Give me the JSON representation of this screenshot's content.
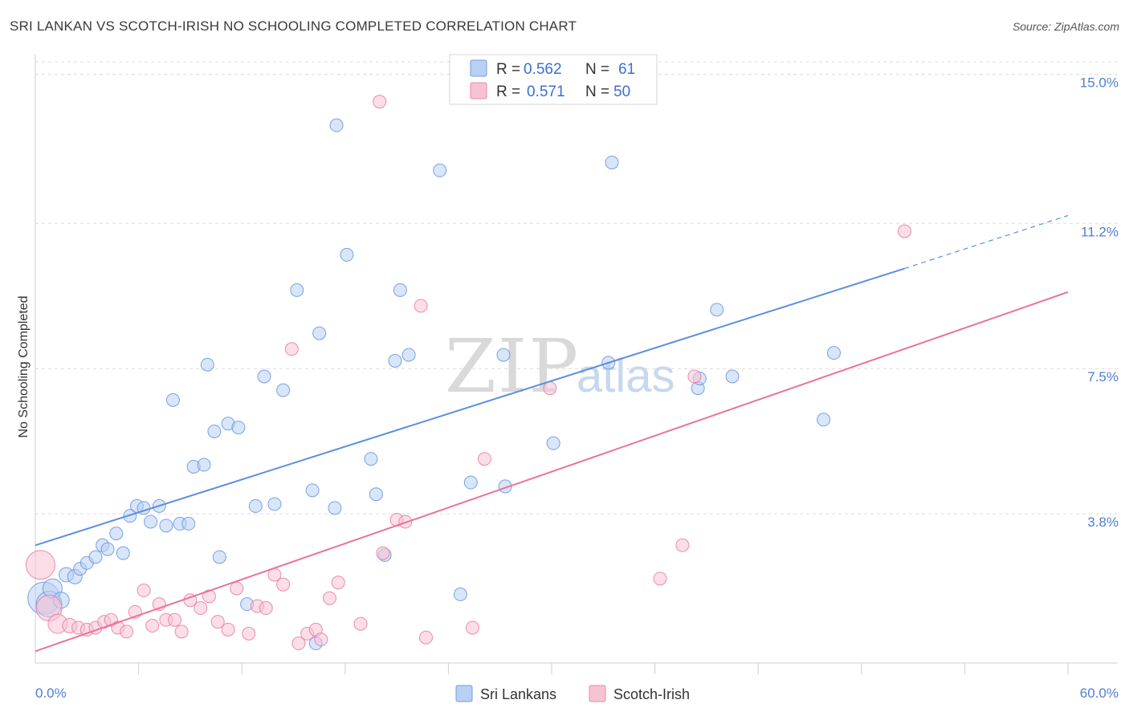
{
  "chart_data": {
    "type": "scatter",
    "title": "SRI LANKAN VS SCOTCH-IRISH NO SCHOOLING COMPLETED CORRELATION CHART",
    "source": "Source: ZipAtlas.com",
    "xlabel": "",
    "ylabel": "No Schooling Completed",
    "xlim": [
      0,
      60
    ],
    "ylim": [
      0,
      15.5
    ],
    "x_tick_labels": [
      {
        "value": 0,
        "label": "0.0%"
      },
      {
        "value": 60,
        "label": "60.0%"
      }
    ],
    "y_tick_labels": [
      {
        "value": 3.8,
        "label": "3.8%"
      },
      {
        "value": 7.5,
        "label": "7.5%"
      },
      {
        "value": 11.2,
        "label": "11.2%"
      },
      {
        "value": 15.0,
        "label": "15.0%"
      }
    ],
    "watermark": {
      "part1": "ZIP",
      "part2": "atlas"
    },
    "legend": {
      "r_label": "R =",
      "n_label": "N =",
      "entries": [
        {
          "r": "0.562",
          "n": "61"
        },
        {
          "r": "0.571",
          "n": "50"
        }
      ]
    },
    "series": [
      {
        "name": "Sri Lankans",
        "color": "#5b8fde",
        "fill": "#b9d0f2",
        "trend": {
          "x0": 0,
          "y0": 3.0,
          "x1": 50.5,
          "y1": 10.05,
          "dash_to_x": 60,
          "dash_to_y": 11.4
        },
        "points": [
          [
            0.5,
            1.65,
            20
          ],
          [
            0.8,
            1.5,
            16
          ],
          [
            1.0,
            1.9,
            12
          ],
          [
            1.5,
            1.6,
            10
          ],
          [
            1.8,
            2.25,
            9
          ],
          [
            2.3,
            2.2,
            9
          ],
          [
            2.6,
            2.4,
            8
          ],
          [
            3.0,
            2.55,
            8
          ],
          [
            3.5,
            2.7,
            8
          ],
          [
            3.9,
            3.0,
            8
          ],
          [
            4.2,
            2.9,
            8
          ],
          [
            4.7,
            3.3,
            8
          ],
          [
            5.1,
            2.8,
            8
          ],
          [
            5.5,
            3.75,
            8
          ],
          [
            5.9,
            4.0,
            8
          ],
          [
            6.3,
            3.95,
            8
          ],
          [
            6.7,
            3.6,
            8
          ],
          [
            7.2,
            4.0,
            8
          ],
          [
            7.6,
            3.5,
            8
          ],
          [
            8.0,
            6.7,
            8
          ],
          [
            8.4,
            3.55,
            8
          ],
          [
            8.9,
            3.55,
            8
          ],
          [
            9.2,
            5.0,
            8
          ],
          [
            9.8,
            5.05,
            8
          ],
          [
            10.0,
            7.6,
            8
          ],
          [
            10.4,
            5.9,
            8
          ],
          [
            10.7,
            2.7,
            8
          ],
          [
            11.2,
            6.1,
            8
          ],
          [
            11.8,
            6.0,
            8
          ],
          [
            12.3,
            1.5,
            8
          ],
          [
            12.8,
            4.0,
            8
          ],
          [
            13.3,
            7.3,
            8
          ],
          [
            13.9,
            4.05,
            8
          ],
          [
            14.4,
            6.95,
            8
          ],
          [
            15.2,
            9.5,
            8
          ],
          [
            16.1,
            4.4,
            8
          ],
          [
            16.5,
            8.4,
            8
          ],
          [
            17.4,
            3.95,
            8
          ],
          [
            17.5,
            13.7,
            8
          ],
          [
            18.1,
            10.4,
            8
          ],
          [
            19.5,
            5.2,
            8
          ],
          [
            19.8,
            4.3,
            8
          ],
          [
            20.3,
            2.75,
            8
          ],
          [
            20.9,
            7.7,
            8
          ],
          [
            21.2,
            9.5,
            8
          ],
          [
            21.7,
            7.85,
            8
          ],
          [
            23.5,
            12.55,
            8
          ],
          [
            16.3,
            0.5,
            8
          ],
          [
            24.7,
            1.75,
            8
          ],
          [
            25.3,
            4.6,
            8
          ],
          [
            27.2,
            7.85,
            8
          ],
          [
            27.3,
            4.5,
            8
          ],
          [
            30.1,
            5.6,
            8
          ],
          [
            33.3,
            7.65,
            8
          ],
          [
            33.5,
            12.75,
            8
          ],
          [
            38.5,
            7.0,
            8
          ],
          [
            38.6,
            7.25,
            8
          ],
          [
            39.6,
            9.0,
            8
          ],
          [
            40.5,
            7.3,
            8
          ],
          [
            45.8,
            6.2,
            8
          ],
          [
            46.4,
            7.9,
            8
          ]
        ]
      },
      {
        "name": "Scotch-Irish",
        "color": "#e9739a",
        "fill": "#f7c3d3",
        "trend": {
          "x0": 0,
          "y0": 0.3,
          "x1": 60,
          "y1": 9.45
        },
        "points": [
          [
            0.3,
            2.5,
            18
          ],
          [
            0.8,
            1.4,
            16
          ],
          [
            1.3,
            1.0,
            12
          ],
          [
            2.0,
            0.95,
            9
          ],
          [
            2.5,
            0.9,
            8
          ],
          [
            3.0,
            0.85,
            8
          ],
          [
            3.5,
            0.9,
            8
          ],
          [
            4.0,
            1.05,
            8
          ],
          [
            4.4,
            1.1,
            8
          ],
          [
            4.8,
            0.9,
            8
          ],
          [
            5.3,
            0.8,
            8
          ],
          [
            5.8,
            1.3,
            8
          ],
          [
            6.3,
            1.85,
            8
          ],
          [
            6.8,
            0.95,
            8
          ],
          [
            7.2,
            1.5,
            8
          ],
          [
            7.6,
            1.1,
            8
          ],
          [
            8.1,
            1.1,
            8
          ],
          [
            8.5,
            0.8,
            8
          ],
          [
            9.0,
            1.6,
            8
          ],
          [
            9.6,
            1.4,
            8
          ],
          [
            10.1,
            1.7,
            8
          ],
          [
            10.6,
            1.05,
            8
          ],
          [
            11.2,
            0.85,
            8
          ],
          [
            11.7,
            1.9,
            8
          ],
          [
            12.4,
            0.75,
            8
          ],
          [
            12.9,
            1.45,
            8
          ],
          [
            13.4,
            1.4,
            8
          ],
          [
            13.9,
            2.25,
            8
          ],
          [
            14.4,
            2.0,
            8
          ],
          [
            14.9,
            8.0,
            8
          ],
          [
            15.3,
            0.5,
            8
          ],
          [
            15.8,
            0.75,
            8
          ],
          [
            16.3,
            0.85,
            8
          ],
          [
            16.6,
            0.6,
            8
          ],
          [
            17.1,
            1.65,
            8
          ],
          [
            17.6,
            2.05,
            8
          ],
          [
            18.9,
            1.0,
            8
          ],
          [
            20.0,
            14.3,
            8
          ],
          [
            20.2,
            2.8,
            8
          ],
          [
            21.0,
            3.65,
            8
          ],
          [
            21.5,
            3.6,
            8
          ],
          [
            22.4,
            9.1,
            8
          ],
          [
            22.7,
            0.65,
            8
          ],
          [
            25.4,
            0.9,
            8
          ],
          [
            26.1,
            5.2,
            8
          ],
          [
            29.9,
            7.0,
            8
          ],
          [
            36.3,
            2.15,
            8
          ],
          [
            37.6,
            3.0,
            8
          ],
          [
            38.3,
            7.3,
            8
          ],
          [
            50.5,
            11.0,
            8
          ]
        ]
      }
    ]
  }
}
